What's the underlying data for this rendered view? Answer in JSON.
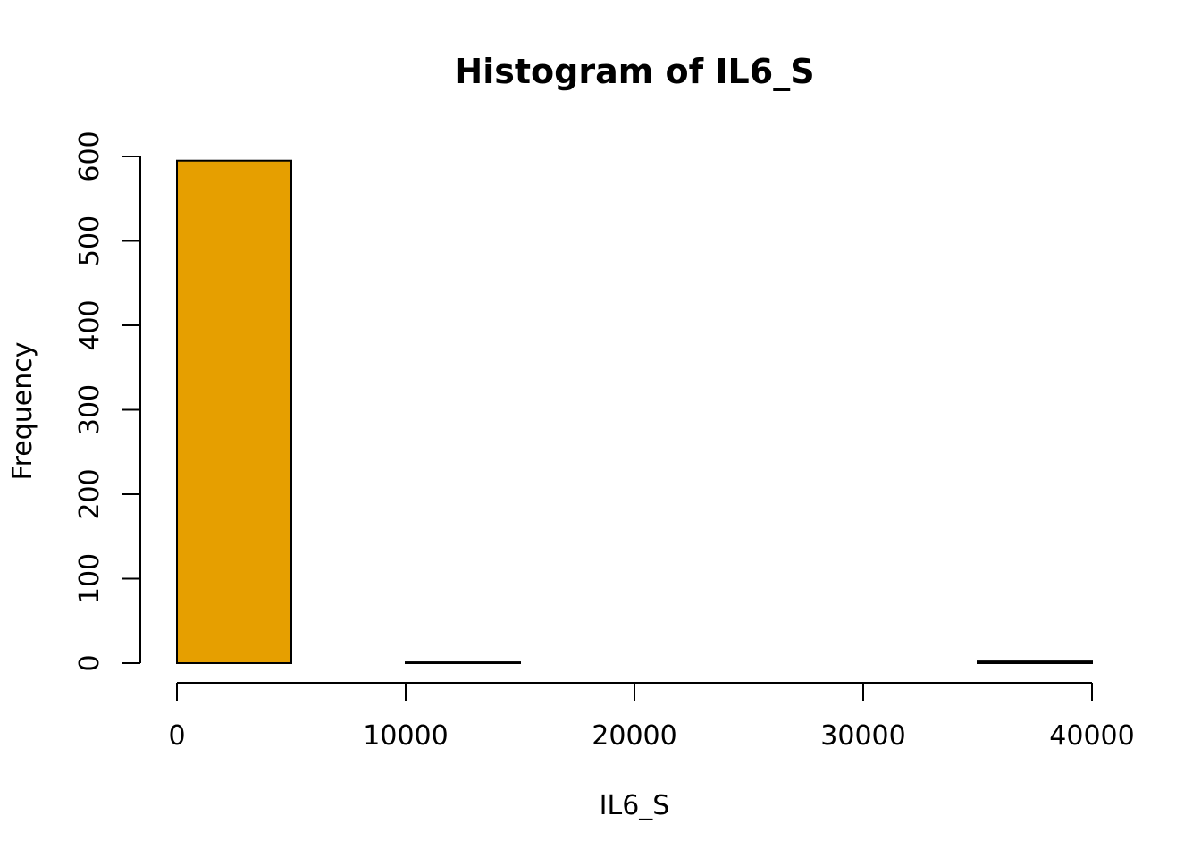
{
  "chart_data": {
    "type": "bar",
    "title": "Histogram of IL6_S",
    "xlabel": "IL6_S",
    "ylabel": "Frequency",
    "bar_color": "#E69F00",
    "border_color": "#000000",
    "bins": [
      {
        "start": 0,
        "end": 5000,
        "count": 595
      },
      {
        "start": 5000,
        "end": 10000,
        "count": 0
      },
      {
        "start": 10000,
        "end": 15000,
        "count": 1
      },
      {
        "start": 15000,
        "end": 20000,
        "count": 0
      },
      {
        "start": 20000,
        "end": 25000,
        "count": 0
      },
      {
        "start": 25000,
        "end": 30000,
        "count": 0
      },
      {
        "start": 30000,
        "end": 35000,
        "count": 0
      },
      {
        "start": 35000,
        "end": 40000,
        "count": 2
      }
    ],
    "xlim": [
      0,
      40000
    ],
    "ylim": [
      0,
      600
    ],
    "x_ticks": [
      0,
      10000,
      20000,
      30000,
      40000
    ],
    "x_tick_labels": [
      "0",
      "10000",
      "20000",
      "30000",
      "40000"
    ],
    "y_ticks": [
      0,
      100,
      200,
      300,
      400,
      500,
      600
    ],
    "y_tick_labels": [
      "0",
      "100",
      "200",
      "300",
      "400",
      "500",
      "600"
    ],
    "grid": false
  }
}
